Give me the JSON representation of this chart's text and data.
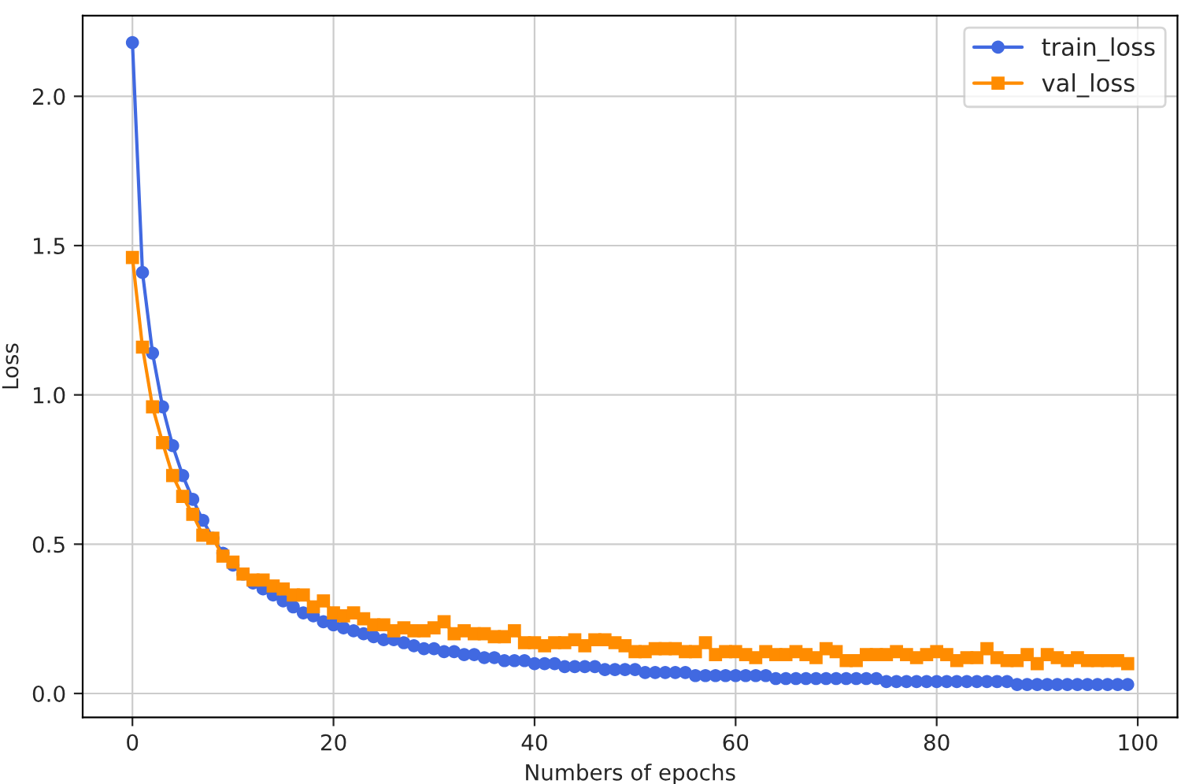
{
  "chart_data": {
    "type": "line",
    "xlabel": "Numbers of epochs",
    "ylabel": "Loss",
    "x": [
      0,
      1,
      2,
      3,
      4,
      5,
      6,
      7,
      8,
      9,
      10,
      11,
      12,
      13,
      14,
      15,
      16,
      17,
      18,
      19,
      20,
      21,
      22,
      23,
      24,
      25,
      26,
      27,
      28,
      29,
      30,
      31,
      32,
      33,
      34,
      35,
      36,
      37,
      38,
      39,
      40,
      41,
      42,
      43,
      44,
      45,
      46,
      47,
      48,
      49,
      50,
      51,
      52,
      53,
      54,
      55,
      56,
      57,
      58,
      59,
      60,
      61,
      62,
      63,
      64,
      65,
      66,
      67,
      68,
      69,
      70,
      71,
      72,
      73,
      74,
      75,
      76,
      77,
      78,
      79,
      80,
      81,
      82,
      83,
      84,
      85,
      86,
      87,
      88,
      89,
      90,
      91,
      92,
      93,
      94,
      95,
      96,
      97,
      98,
      99
    ],
    "series": [
      {
        "name": "train_loss",
        "color": "#4169e1",
        "marker": "circle",
        "values": [
          2.18,
          1.41,
          1.14,
          0.96,
          0.83,
          0.73,
          0.65,
          0.58,
          0.52,
          0.47,
          0.43,
          0.4,
          0.37,
          0.35,
          0.33,
          0.31,
          0.29,
          0.27,
          0.26,
          0.24,
          0.23,
          0.22,
          0.21,
          0.2,
          0.19,
          0.18,
          0.18,
          0.17,
          0.16,
          0.15,
          0.15,
          0.14,
          0.14,
          0.13,
          0.13,
          0.12,
          0.12,
          0.11,
          0.11,
          0.11,
          0.1,
          0.1,
          0.1,
          0.09,
          0.09,
          0.09,
          0.09,
          0.08,
          0.08,
          0.08,
          0.08,
          0.07,
          0.07,
          0.07,
          0.07,
          0.07,
          0.06,
          0.06,
          0.06,
          0.06,
          0.06,
          0.06,
          0.06,
          0.06,
          0.05,
          0.05,
          0.05,
          0.05,
          0.05,
          0.05,
          0.05,
          0.05,
          0.05,
          0.05,
          0.05,
          0.04,
          0.04,
          0.04,
          0.04,
          0.04,
          0.04,
          0.04,
          0.04,
          0.04,
          0.04,
          0.04,
          0.04,
          0.04,
          0.03,
          0.03,
          0.03,
          0.03,
          0.03,
          0.03,
          0.03,
          0.03,
          0.03,
          0.03,
          0.03,
          0.03
        ]
      },
      {
        "name": "val_loss",
        "color": "#ff8c00",
        "marker": "square",
        "values": [
          1.46,
          1.16,
          0.96,
          0.84,
          0.73,
          0.66,
          0.6,
          0.53,
          0.52,
          0.46,
          0.44,
          0.4,
          0.38,
          0.38,
          0.36,
          0.35,
          0.33,
          0.33,
          0.29,
          0.31,
          0.27,
          0.26,
          0.27,
          0.25,
          0.23,
          0.23,
          0.21,
          0.22,
          0.21,
          0.21,
          0.22,
          0.24,
          0.2,
          0.21,
          0.2,
          0.2,
          0.19,
          0.19,
          0.21,
          0.17,
          0.17,
          0.16,
          0.17,
          0.17,
          0.18,
          0.16,
          0.18,
          0.18,
          0.17,
          0.16,
          0.14,
          0.14,
          0.15,
          0.15,
          0.15,
          0.14,
          0.14,
          0.17,
          0.13,
          0.14,
          0.14,
          0.13,
          0.12,
          0.14,
          0.13,
          0.13,
          0.14,
          0.13,
          0.12,
          0.15,
          0.14,
          0.11,
          0.11,
          0.13,
          0.13,
          0.13,
          0.14,
          0.13,
          0.12,
          0.13,
          0.14,
          0.13,
          0.11,
          0.12,
          0.12,
          0.15,
          0.12,
          0.11,
          0.11,
          0.13,
          0.1,
          0.13,
          0.12,
          0.11,
          0.12,
          0.11,
          0.11,
          0.11,
          0.11,
          0.1
        ]
      }
    ],
    "xlim": [
      -4.95,
      103.95
    ],
    "ylim": [
      -0.08,
      2.27
    ],
    "xticks": [
      0,
      20,
      40,
      60,
      80,
      100
    ],
    "yticks": [
      {
        "value": 0,
        "label": "0.0"
      },
      {
        "value": 0.5,
        "label": "0.5"
      },
      {
        "value": 1,
        "label": "1.0"
      },
      {
        "value": 1.5,
        "label": "1.5"
      },
      {
        "value": 2,
        "label": "2.0"
      }
    ],
    "grid": true,
    "legend": "top right",
    "line_style": "solid"
  }
}
